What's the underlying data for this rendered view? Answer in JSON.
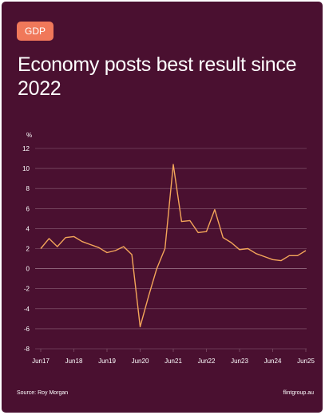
{
  "badge": "GDP",
  "title": "Economy posts best result since 2022",
  "source": "Source: Roy Morgan",
  "site": "flintgroup.au",
  "colors": {
    "background": "#4a1030",
    "badge": "#f0785a",
    "line": "#f4a65a",
    "grid": "#8a6076",
    "text": "#ffffff"
  },
  "chart_data": {
    "type": "line",
    "title": "",
    "xlabel": "",
    "ylabel": "%",
    "ylim": [
      -8,
      12
    ],
    "yticks": [
      "12",
      "10",
      "8",
      "6",
      "4",
      "2",
      "0",
      "-2",
      "-4",
      "-6",
      "-8"
    ],
    "xtick_labels": [
      "Jun17",
      "Jun18",
      "Jun19",
      "Jun20",
      "Jun21",
      "Jun22",
      "Jun23",
      "Jun24",
      "Jun25"
    ],
    "grid": true,
    "legend": "none",
    "series": [
      {
        "x": [
          "Jun17",
          "Sep17",
          "Dec17",
          "Mar18",
          "Jun18",
          "Sep18",
          "Dec18",
          "Mar19",
          "Jun19",
          "Sep19",
          "Dec19",
          "Mar20",
          "Jun20",
          "Sep20",
          "Dec20",
          "Mar21",
          "Jun21",
          "Sep21",
          "Dec21",
          "Mar22",
          "Jun22",
          "Sep22",
          "Dec22",
          "Mar23",
          "Jun23",
          "Sep23",
          "Dec23",
          "Mar24",
          "Jun24",
          "Sep24",
          "Dec24",
          "Mar25",
          "Jun25"
        ],
        "values": [
          2.0,
          3.0,
          2.2,
          3.1,
          3.2,
          2.7,
          2.4,
          2.1,
          1.6,
          1.8,
          2.2,
          1.4,
          -5.8,
          -2.8,
          0.0,
          2.0,
          10.4,
          4.7,
          4.8,
          3.6,
          3.7,
          5.9,
          3.1,
          2.6,
          1.9,
          2.0,
          1.5,
          1.2,
          0.9,
          0.8,
          1.3,
          1.3,
          1.8
        ]
      }
    ]
  }
}
